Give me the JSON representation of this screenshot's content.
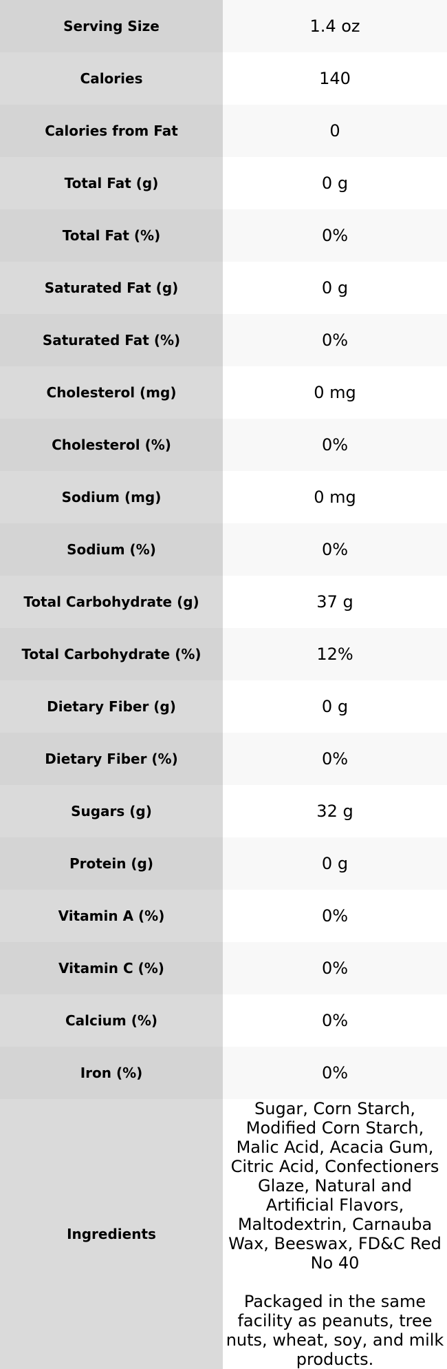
{
  "rows": [
    {
      "label": "Serving Size",
      "value": "1.4 oz"
    },
    {
      "label": "Calories",
      "value": "140"
    },
    {
      "label": "Calories from Fat",
      "value": "0"
    },
    {
      "label": "Total Fat (g)",
      "value": "0 g"
    },
    {
      "label": "Total Fat (%)",
      "value": "0%"
    },
    {
      "label": "Saturated Fat (g)",
      "value": "0 g"
    },
    {
      "label": "Saturated Fat (%)",
      "value": "0%"
    },
    {
      "label": "Cholesterol (mg)",
      "value": "0 mg"
    },
    {
      "label": "Cholesterol (%)",
      "value": "0%"
    },
    {
      "label": "Sodium (mg)",
      "value": "0 mg"
    },
    {
      "label": "Sodium (%)",
      "value": "0%"
    },
    {
      "label": "Total Carbohydrate (g)",
      "value": "37 g"
    },
    {
      "label": "Total Carbohydrate (%)",
      "value": "12%"
    },
    {
      "label": "Dietary Fiber (g)",
      "value": "0 g"
    },
    {
      "label": "Dietary Fiber (%)",
      "value": "0%"
    },
    {
      "label": "Sugars (g)",
      "value": "32 g"
    },
    {
      "label": "Protein (g)",
      "value": "0 g"
    },
    {
      "label": "Vitamin A (%)",
      "value": "0%"
    },
    {
      "label": "Vitamin C (%)",
      "value": "0%"
    },
    {
      "label": "Calcium (%)",
      "value": "0%"
    },
    {
      "label": "Iron (%)",
      "value": "0%"
    }
  ],
  "ingredients": {
    "label": "Ingredients",
    "text": "Sugar, Corn Starch, Modified Corn Starch, Malic Acid, Acacia Gum, Citric Acid, Confectioners Glaze, Natural and Artificial Flavors, Maltodextrin, Carnauba Wax, Beeswax, FD&C Red No 40",
    "note": "Packaged in the same facility as peanuts, tree nuts, wheat, soy, and milk products."
  }
}
